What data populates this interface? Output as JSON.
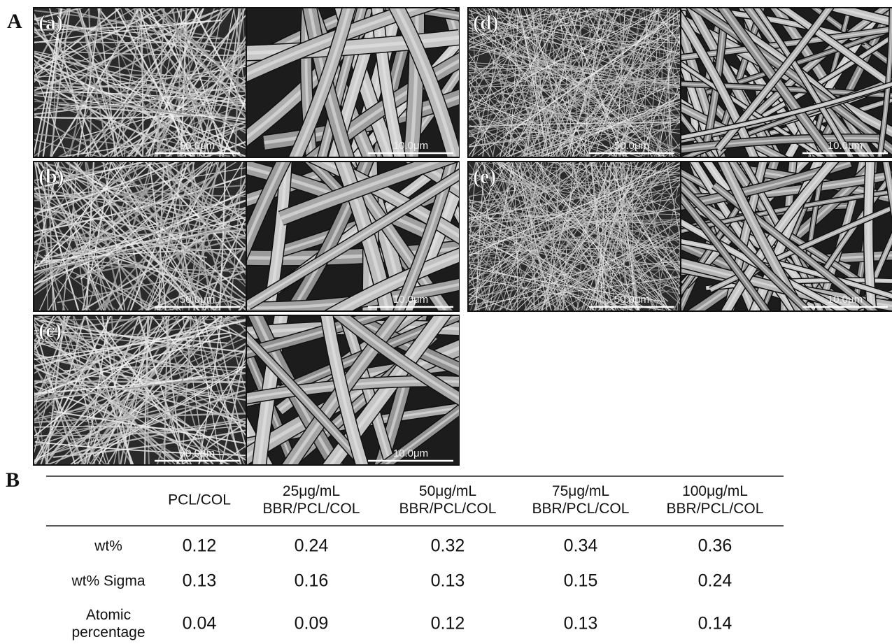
{
  "panel_a": {
    "label": "A",
    "samples": [
      {
        "label": "(a)",
        "images": [
          {
            "scale_bar": "50.0μm"
          },
          {
            "scale_bar": "10.0μm"
          }
        ]
      },
      {
        "label": "(b)",
        "images": [
          {
            "scale_bar": "50.0μm"
          },
          {
            "scale_bar": "10.0μm"
          }
        ]
      },
      {
        "label": "(c)",
        "images": [
          {
            "scale_bar": "50.0μm"
          },
          {
            "scale_bar": "10.0μm"
          }
        ]
      },
      {
        "label": "(d)",
        "images": [
          {
            "scale_bar": "50.0μm"
          },
          {
            "scale_bar": "10.0μm"
          }
        ]
      },
      {
        "label": "(e)",
        "images": [
          {
            "scale_bar": "50.0μm"
          },
          {
            "scale_bar": "10.0μm"
          }
        ]
      }
    ]
  },
  "panel_b": {
    "label": "B",
    "table": {
      "header": [
        [
          "PCL/COL"
        ],
        [
          "25μg/mL",
          "BBR/PCL/COL"
        ],
        [
          "50μg/mL",
          "BBR/PCL/COL"
        ],
        [
          "75μg/mL",
          "BBR/PCL/COL"
        ],
        [
          "100μg/mL",
          "BBR/PCL/COL"
        ]
      ],
      "rows": [
        {
          "label": [
            "wt%"
          ],
          "cells": [
            "0.12",
            "0.24",
            "0.32",
            "0.34",
            "0.36"
          ]
        },
        {
          "label": [
            "wt% Sigma"
          ],
          "cells": [
            "0.13",
            "0.16",
            "0.13",
            "0.15",
            "0.24"
          ]
        },
        {
          "label": [
            "Atomic",
            "percentage"
          ],
          "cells": [
            "0.04",
            "0.09",
            "0.12",
            "0.13",
            "0.14"
          ]
        }
      ]
    }
  }
}
